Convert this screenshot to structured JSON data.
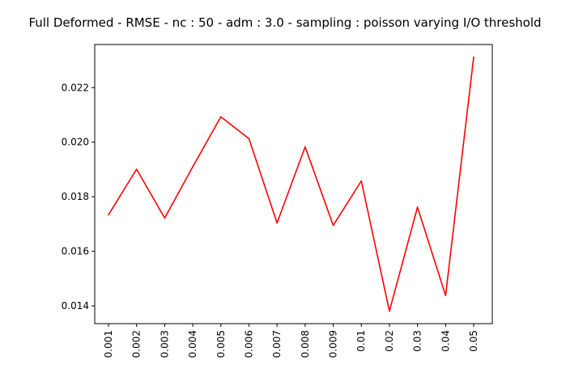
{
  "chart_data": {
    "type": "line",
    "title": "Full Deformed - RMSE - nc : 50 - adm : 3.0 - sampling : poisson varying I/O threshold",
    "xlabel": "",
    "ylabel": "",
    "categories": [
      "0.001",
      "0.002",
      "0.003",
      "0.004",
      "0.005",
      "0.006",
      "0.007",
      "0.008",
      "0.009",
      "0.01",
      "0.02",
      "0.03",
      "0.04",
      "0.05"
    ],
    "series": [
      {
        "color": "#ff0000",
        "values": [
          0.01734,
          0.01901,
          0.01722,
          0.0191,
          0.02093,
          0.02013,
          0.01704,
          0.01983,
          0.01695,
          0.01858,
          0.01381,
          0.01762,
          0.01438,
          0.02312
        ]
      }
    ],
    "yticks": [
      "0.014",
      "0.016",
      "0.018",
      "0.020",
      "0.022"
    ],
    "yticks_values": [
      0.014,
      0.016,
      0.018,
      0.02,
      0.022
    ],
    "ylim": [
      0.01335,
      0.02358
    ],
    "grid": false,
    "legend": "none"
  }
}
